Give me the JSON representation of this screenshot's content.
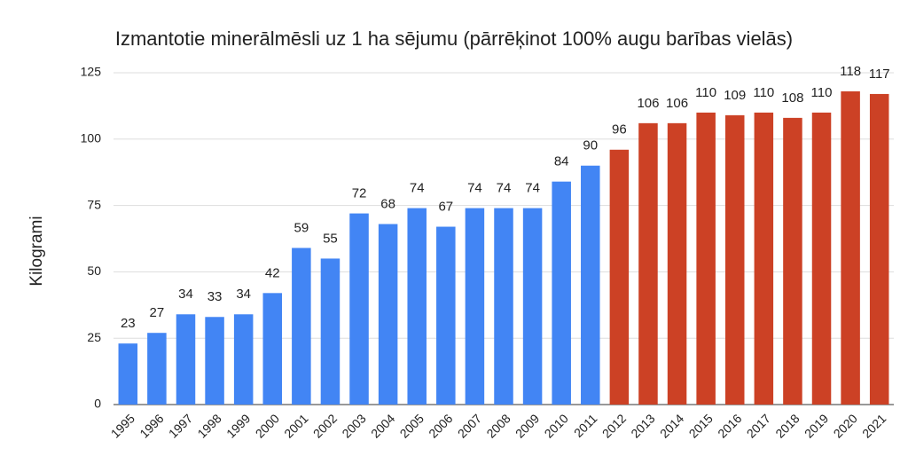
{
  "chart_data": {
    "type": "bar",
    "title": "Izmantotie minerālmēsli uz 1 ha sējumu (pārrēķinot 100% augu barības vielās)",
    "y_label": "Kilogrami",
    "categories": [
      "1995",
      "1996",
      "1997",
      "1998",
      "1999",
      "2000",
      "2001",
      "2002",
      "2003",
      "2004",
      "2005",
      "2006",
      "2007",
      "2008",
      "2009",
      "2010",
      "2011",
      "2012",
      "2013",
      "2014",
      "2015",
      "2016",
      "2017",
      "2018",
      "2019",
      "2020",
      "2021"
    ],
    "values": [
      23,
      27,
      34,
      33,
      34,
      42,
      59,
      55,
      72,
      68,
      74,
      67,
      74,
      74,
      74,
      84,
      90,
      96,
      106,
      106,
      110,
      109,
      110,
      108,
      110,
      118,
      117
    ],
    "colors": [
      "#4285f4",
      "#4285f4",
      "#4285f4",
      "#4285f4",
      "#4285f4",
      "#4285f4",
      "#4285f4",
      "#4285f4",
      "#4285f4",
      "#4285f4",
      "#4285f4",
      "#4285f4",
      "#4285f4",
      "#4285f4",
      "#4285f4",
      "#4285f4",
      "#4285f4",
      "#cc4125",
      "#cc4125",
      "#cc4125",
      "#cc4125",
      "#cc4125",
      "#cc4125",
      "#cc4125",
      "#cc4125",
      "#cc4125",
      "#cc4125"
    ],
    "ylim": [
      0,
      125
    ],
    "yticks": [
      0,
      25,
      50,
      75,
      100,
      125
    ],
    "grid": true
  }
}
